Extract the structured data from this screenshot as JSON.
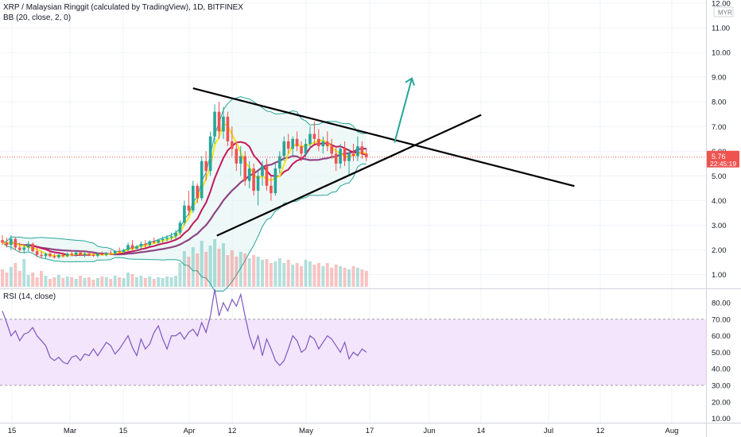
{
  "header": {
    "title": "XRP / Malaysian Ringgit (calculated by TradingView), 1D, BITFINEX",
    "indicator": "BB (20, close, 2, 0)"
  },
  "price_scale": {
    "currency": "MYR",
    "ticks": [
      "12.00",
      "11.00",
      "10.00",
      "9.00",
      "8.00",
      "7.00",
      "6.00",
      "5.00",
      "4.00",
      "3.00",
      "2.00",
      "1.00"
    ],
    "last_price": "5.76",
    "countdown": "22:45:19"
  },
  "rsi": {
    "label": "RSI (14, close)",
    "ticks": [
      "80.00",
      "70.00",
      "60.00",
      "50.00",
      "40.00",
      "30.00",
      "20.00",
      "10.00"
    ],
    "values": [
      75,
      68,
      60,
      63,
      57,
      61,
      62,
      65,
      60,
      57,
      54,
      47,
      45,
      47,
      44,
      43,
      47,
      48,
      45,
      49,
      48,
      52,
      48,
      52,
      56,
      54,
      49,
      52,
      56,
      60,
      53,
      48,
      58,
      52,
      55,
      62,
      66,
      58,
      52,
      60,
      60,
      62,
      58,
      62,
      64,
      60,
      68,
      62,
      72,
      88,
      72,
      80,
      75,
      82,
      78,
      85,
      72,
      60,
      52,
      60,
      48,
      58,
      52,
      45,
      42,
      45,
      52,
      60,
      57,
      50,
      52,
      60,
      58,
      52,
      56,
      60,
      58,
      54,
      50,
      56,
      46,
      50,
      48,
      52,
      50
    ],
    "colors": {
      "line": "#7e57c2",
      "band": "#f3e5fb",
      "band_border": "#9e9e9e"
    }
  },
  "time_axis": {
    "labels": [
      "15",
      "Mar",
      "15",
      "Apr",
      "12",
      "May",
      "17",
      "Jun",
      "14",
      "Jul",
      "12",
      "Aug"
    ]
  },
  "colors": {
    "up": "#26a69a",
    "down": "#ef5350",
    "last_price_tag": "#ef5350",
    "bb_band": "#26a69a",
    "bb_fill": "#e0f2f1",
    "ma_fast": "#f6e61b",
    "ma_mid": "#c2185b",
    "ma_slow": "#8e4585",
    "trendline": "#000000",
    "arrow": "#26a69a"
  },
  "chart_data": {
    "type": "candlestick",
    "title": "XRP / Malaysian Ringgit (calculated by TradingView), 1D, BITFINEX",
    "y_unit": "MYR",
    "ylim": [
      0.5,
      12
    ],
    "candles": [
      [
        2.4,
        2.6,
        2.2,
        2.3
      ],
      [
        2.3,
        2.5,
        2.1,
        2.2
      ],
      [
        2.2,
        2.6,
        2.0,
        2.45
      ],
      [
        2.45,
        2.5,
        2.0,
        2.1
      ],
      [
        2.1,
        2.3,
        1.9,
        2.0
      ],
      [
        2.0,
        2.2,
        1.85,
        2.1
      ],
      [
        2.1,
        2.35,
        1.95,
        2.25
      ],
      [
        2.25,
        2.3,
        1.9,
        1.95
      ],
      [
        1.95,
        2.1,
        1.7,
        1.8
      ],
      [
        1.8,
        1.95,
        1.65,
        1.75
      ],
      [
        1.75,
        1.9,
        1.65,
        1.85
      ],
      [
        1.85,
        1.95,
        1.7,
        1.75
      ],
      [
        1.75,
        1.85,
        1.65,
        1.7
      ],
      [
        1.7,
        1.85,
        1.65,
        1.8
      ],
      [
        1.8,
        1.9,
        1.7,
        1.75
      ],
      [
        1.75,
        1.9,
        1.7,
        1.85
      ],
      [
        1.85,
        2.0,
        1.75,
        1.8
      ],
      [
        1.8,
        1.95,
        1.72,
        1.9
      ],
      [
        1.9,
        1.98,
        1.75,
        1.78
      ],
      [
        1.78,
        1.9,
        1.7,
        1.85
      ],
      [
        1.85,
        1.95,
        1.75,
        1.8
      ],
      [
        1.8,
        1.9,
        1.72,
        1.76
      ],
      [
        1.76,
        1.88,
        1.7,
        1.84
      ],
      [
        1.84,
        1.95,
        1.78,
        1.8
      ],
      [
        1.8,
        1.92,
        1.74,
        1.88
      ],
      [
        1.88,
        2.0,
        1.8,
        1.85
      ],
      [
        1.85,
        1.98,
        1.78,
        1.95
      ],
      [
        1.95,
        2.1,
        1.88,
        1.92
      ],
      [
        1.92,
        2.05,
        1.85,
        2.0
      ],
      [
        2.0,
        2.3,
        1.95,
        2.2
      ],
      [
        2.2,
        2.4,
        2.0,
        2.05
      ],
      [
        2.05,
        2.2,
        1.95,
        2.15
      ],
      [
        2.15,
        2.35,
        2.05,
        2.25
      ],
      [
        2.25,
        2.4,
        2.1,
        2.2
      ],
      [
        2.2,
        2.4,
        2.15,
        2.35
      ],
      [
        2.35,
        2.5,
        2.25,
        2.3
      ],
      [
        2.3,
        2.45,
        2.2,
        2.4
      ],
      [
        2.4,
        2.55,
        2.3,
        2.45
      ],
      [
        2.45,
        2.6,
        2.35,
        2.5
      ],
      [
        2.5,
        2.7,
        2.4,
        2.55
      ],
      [
        2.55,
        2.8,
        2.45,
        2.7
      ],
      [
        2.7,
        3.2,
        2.6,
        3.1
      ],
      [
        3.1,
        4.0,
        3.0,
        3.8
      ],
      [
        3.8,
        4.4,
        3.4,
        3.6
      ],
      [
        3.6,
        4.8,
        3.5,
        4.6
      ],
      [
        4.6,
        4.7,
        3.9,
        4.1
      ],
      [
        4.1,
        5.8,
        4.0,
        5.6
      ],
      [
        5.6,
        6.0,
        4.8,
        5.2
      ],
      [
        5.2,
        6.8,
        5.0,
        6.6
      ],
      [
        6.6,
        7.9,
        6.3,
        7.6
      ],
      [
        7.6,
        8.0,
        6.5,
        6.8
      ],
      [
        6.8,
        7.8,
        6.5,
        7.4
      ],
      [
        7.4,
        7.6,
        6.2,
        6.4
      ],
      [
        6.4,
        7.0,
        5.8,
        6.1
      ],
      [
        6.1,
        6.4,
        5.2,
        5.5
      ],
      [
        5.5,
        6.2,
        5.0,
        5.8
      ],
      [
        5.8,
        6.0,
        4.6,
        4.8
      ],
      [
        4.8,
        5.6,
        4.5,
        5.3
      ],
      [
        5.3,
        5.5,
        4.2,
        4.4
      ],
      [
        4.4,
        5.2,
        3.8,
        5.0
      ],
      [
        5.0,
        5.6,
        4.6,
        5.4
      ],
      [
        5.4,
        5.7,
        4.4,
        4.6
      ],
      [
        4.6,
        5.0,
        4.0,
        4.3
      ],
      [
        4.3,
        5.5,
        4.2,
        5.3
      ],
      [
        5.3,
        6.0,
        5.1,
        5.8
      ],
      [
        5.8,
        6.6,
        5.6,
        6.4
      ],
      [
        6.4,
        6.7,
        5.9,
        6.1
      ],
      [
        6.1,
        6.6,
        5.8,
        6.5
      ],
      [
        6.5,
        6.8,
        6.0,
        6.2
      ],
      [
        6.2,
        6.4,
        5.6,
        5.9
      ],
      [
        5.9,
        6.5,
        5.7,
        6.3
      ],
      [
        6.3,
        7.0,
        6.1,
        6.7
      ],
      [
        6.7,
        7.2,
        6.3,
        6.5
      ],
      [
        6.5,
        6.9,
        6.0,
        6.2
      ],
      [
        6.2,
        6.6,
        5.9,
        6.4
      ],
      [
        6.4,
        6.8,
        6.0,
        6.2
      ],
      [
        6.2,
        6.5,
        5.7,
        5.9
      ],
      [
        5.9,
        6.2,
        5.2,
        5.5
      ],
      [
        5.5,
        6.3,
        5.3,
        6.1
      ],
      [
        6.1,
        6.4,
        5.4,
        5.6
      ],
      [
        5.6,
        6.1,
        5.0,
        5.9
      ],
      [
        5.9,
        6.3,
        5.6,
        5.8
      ],
      [
        5.8,
        6.6,
        5.6,
        6.2
      ],
      [
        6.2,
        6.4,
        5.7,
        5.9
      ],
      [
        5.9,
        6.1,
        5.6,
        5.76
      ]
    ],
    "volume": [
      22,
      18,
      25,
      30,
      20,
      35,
      15,
      18,
      12,
      20,
      14,
      10,
      12,
      15,
      11,
      13,
      12,
      10,
      14,
      11,
      12,
      9,
      11,
      13,
      12,
      10,
      14,
      12,
      11,
      18,
      16,
      12,
      14,
      11,
      13,
      10,
      12,
      11,
      13,
      12,
      14,
      30,
      45,
      38,
      50,
      42,
      58,
      44,
      52,
      60,
      48,
      55,
      40,
      46,
      38,
      44,
      42,
      36,
      40,
      38,
      34,
      35,
      30,
      32,
      36,
      30,
      34,
      28,
      30,
      26,
      34,
      32,
      28,
      30,
      26,
      30,
      24,
      28,
      26,
      24,
      22,
      26,
      24,
      22,
      20
    ]
  }
}
